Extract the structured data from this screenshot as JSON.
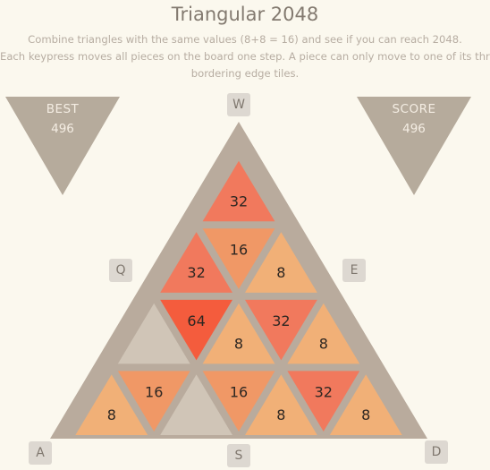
{
  "header": {
    "title": "Triangular 2048",
    "instructions": [
      "Combine triangles with the same values (8+8 = 16) and see if you can reach 2048.",
      "Each keypress moves all pieces on the board one step. A piece can only move to one of its three",
      "bordering edge tiles."
    ]
  },
  "best": {
    "label": "BEST",
    "value": "496"
  },
  "score": {
    "label": "SCORE",
    "value": "496"
  },
  "keys": {
    "w": "W",
    "q": "Q",
    "e": "E",
    "a": "A",
    "s": "S",
    "d": "D"
  },
  "colors": {
    "board": "#b9ab9d",
    "empty": "#d0c5b7",
    "panel": "#b6ab9c",
    "tile_8": "#f1b077",
    "tile_16": "#f09866",
    "tile_32": "#f1795d",
    "tile_64": "#f45c3d"
  },
  "board": {
    "rows": 4,
    "tiles": [
      {
        "row": 0,
        "col": 0,
        "value": "32"
      },
      {
        "row": 1,
        "col": 0,
        "value": "32"
      },
      {
        "row": 1,
        "col": 1,
        "value": "16"
      },
      {
        "row": 1,
        "col": 2,
        "value": "8"
      },
      {
        "row": 2,
        "col": 0,
        "value": ""
      },
      {
        "row": 2,
        "col": 1,
        "value": "64"
      },
      {
        "row": 2,
        "col": 2,
        "value": "8"
      },
      {
        "row": 2,
        "col": 3,
        "value": "32"
      },
      {
        "row": 2,
        "col": 4,
        "value": "8"
      },
      {
        "row": 3,
        "col": 0,
        "value": "8"
      },
      {
        "row": 3,
        "col": 1,
        "value": "16"
      },
      {
        "row": 3,
        "col": 2,
        "value": ""
      },
      {
        "row": 3,
        "col": 3,
        "value": "16"
      },
      {
        "row": 3,
        "col": 4,
        "value": "8"
      },
      {
        "row": 3,
        "col": 5,
        "value": "32"
      },
      {
        "row": 3,
        "col": 6,
        "value": "8"
      }
    ]
  }
}
